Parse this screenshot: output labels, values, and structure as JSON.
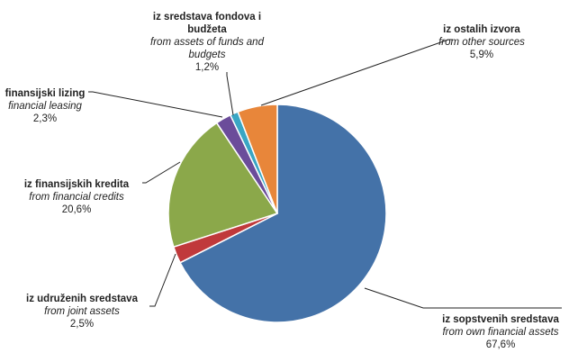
{
  "chart_data": {
    "type": "pie",
    "slices": [
      {
        "label_sr": "iz sopstvenih sredstava",
        "label_en": "from own financial assets",
        "value": 67.6,
        "pct_text": "67,6%",
        "color": "#4472A8"
      },
      {
        "label_sr": "iz udruženih sredstava",
        "label_en": "from joint assets",
        "value": 2.5,
        "pct_text": "2,5%",
        "color": "#C0393B"
      },
      {
        "label_sr": "iz finansijskih kredita",
        "label_en": "from financial credits",
        "value": 20.6,
        "pct_text": "20,6%",
        "color": "#8BA84A"
      },
      {
        "label_sr": "finansijski lizing",
        "label_en": "financial leasing",
        "value": 2.3,
        "pct_text": "2,3%",
        "color": "#6B4C9A"
      },
      {
        "label_sr": "iz sredstava fondova i budžeta",
        "label_en": "from assets of funds and budgets",
        "value": 1.2,
        "pct_text": "1,2%",
        "color": "#3AA6C4"
      },
      {
        "label_sr": "iz ostalih izvora",
        "label_en": "from other sources",
        "value": 5.9,
        "pct_text": "5,9%",
        "color": "#E8863A"
      }
    ]
  }
}
